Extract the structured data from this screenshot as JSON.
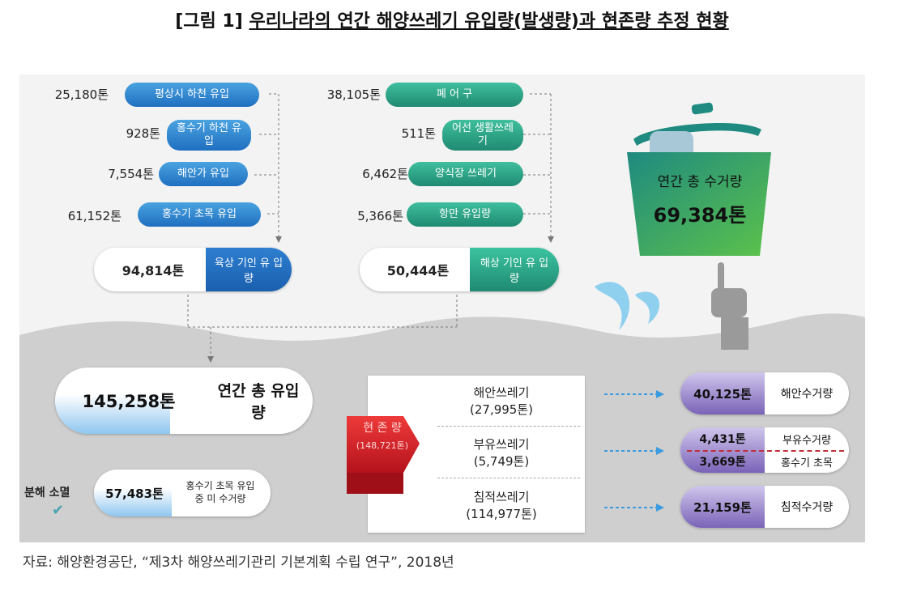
{
  "title": {
    "bracket": "[그림 1]",
    "text": "우리나라의 연간 해양쓰레기 유입량(발생량)과 현존량 추정 현황"
  },
  "land": {
    "items": [
      {
        "amount": "25,180톤",
        "label": "평상시 하천 유입"
      },
      {
        "amount": "928톤",
        "label": "홍수기 하천 유입"
      },
      {
        "amount": "7,554톤",
        "label": "해안가 유입"
      },
      {
        "amount": "61,152톤",
        "label": "홍수기 초목 유입"
      }
    ],
    "total_amount": "94,814톤",
    "total_label": "육상 기인 유 입 량"
  },
  "sea": {
    "items": [
      {
        "amount": "38,105톤",
        "label": "폐 어 구"
      },
      {
        "amount": "511톤",
        "label": "어선 생활쓰레기"
      },
      {
        "amount": "6,462톤",
        "label": "양식장 쓰레기"
      },
      {
        "amount": "5,366톤",
        "label": "항만 유입량"
      }
    ],
    "total_amount": "50,444톤",
    "total_label": "해상 기인 유 입 량"
  },
  "bin": {
    "label": "연간 총 수거량",
    "amount": "69,384톤"
  },
  "total_inflow": {
    "amount": "145,258톤",
    "label": "연간 총 유입량"
  },
  "decomp": {
    "label": "분해 소멸",
    "amount": "57,483톤",
    "desc": "홍수기 초목 유입 중 미 수거량"
  },
  "standing": {
    "label": "현 존 량",
    "amount": "(148,721톤)",
    "items": [
      {
        "name": "해안쓰레기",
        "amount": "(27,995톤)"
      },
      {
        "name": "부유쓰레기",
        "amount": "(5,749톤)"
      },
      {
        "name": "침적쓰레기",
        "amount": "(114,977톤)"
      }
    ]
  },
  "collect": [
    {
      "amount": "40,125톤",
      "label": "해안수거량"
    },
    {
      "amount": "4,431톤",
      "label": "부유수거량"
    },
    {
      "amount": "3,669톤",
      "label": "홍수기 초목"
    },
    {
      "amount": "21,159톤",
      "label": "침적수거량"
    }
  ],
  "source": "자료: 해양환경공단, “제3차 해양쓰레기관리 기본계획 수립 연구”, 2018년",
  "colors": {
    "blue": "#1f6fc0",
    "teal": "#1f8a72",
    "red": "#d81e2a",
    "purple": "#7a63b8",
    "green": "#3cb56a",
    "sea": "#c8c8c8"
  }
}
